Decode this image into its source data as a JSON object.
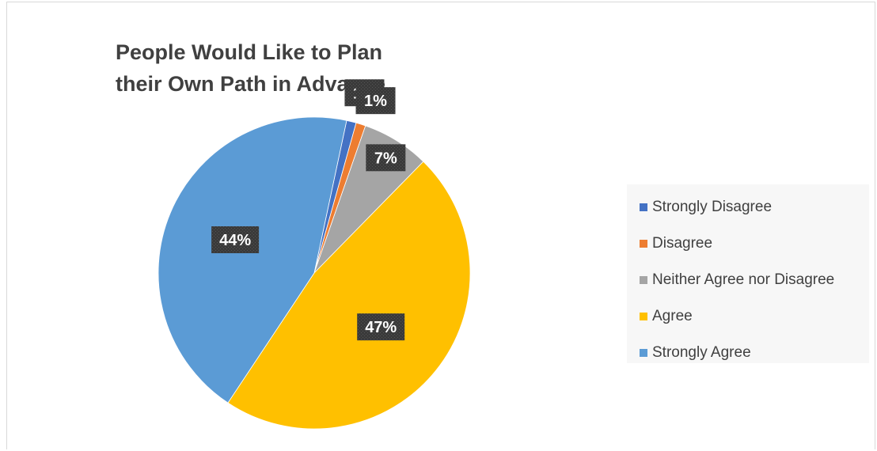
{
  "chart_data": {
    "type": "pie",
    "title": "People Would Like to Plan their Own Path in Advance.",
    "title_lines": [
      "People Would Like to Plan",
      "their Own Path in Advance."
    ],
    "categories": [
      "Strongly Disagree",
      "Disagree",
      "Neither Agree nor Disagree",
      "Agree",
      "Strongly Agree"
    ],
    "values": [
      1,
      1,
      7,
      47,
      44
    ],
    "labels": [
      "1%",
      "1%",
      "7%",
      "47%",
      "44%"
    ],
    "colors": [
      "#4472c4",
      "#ed7d31",
      "#a5a5a5",
      "#ffc000",
      "#5b9bd5"
    ],
    "legend_position": "right"
  }
}
